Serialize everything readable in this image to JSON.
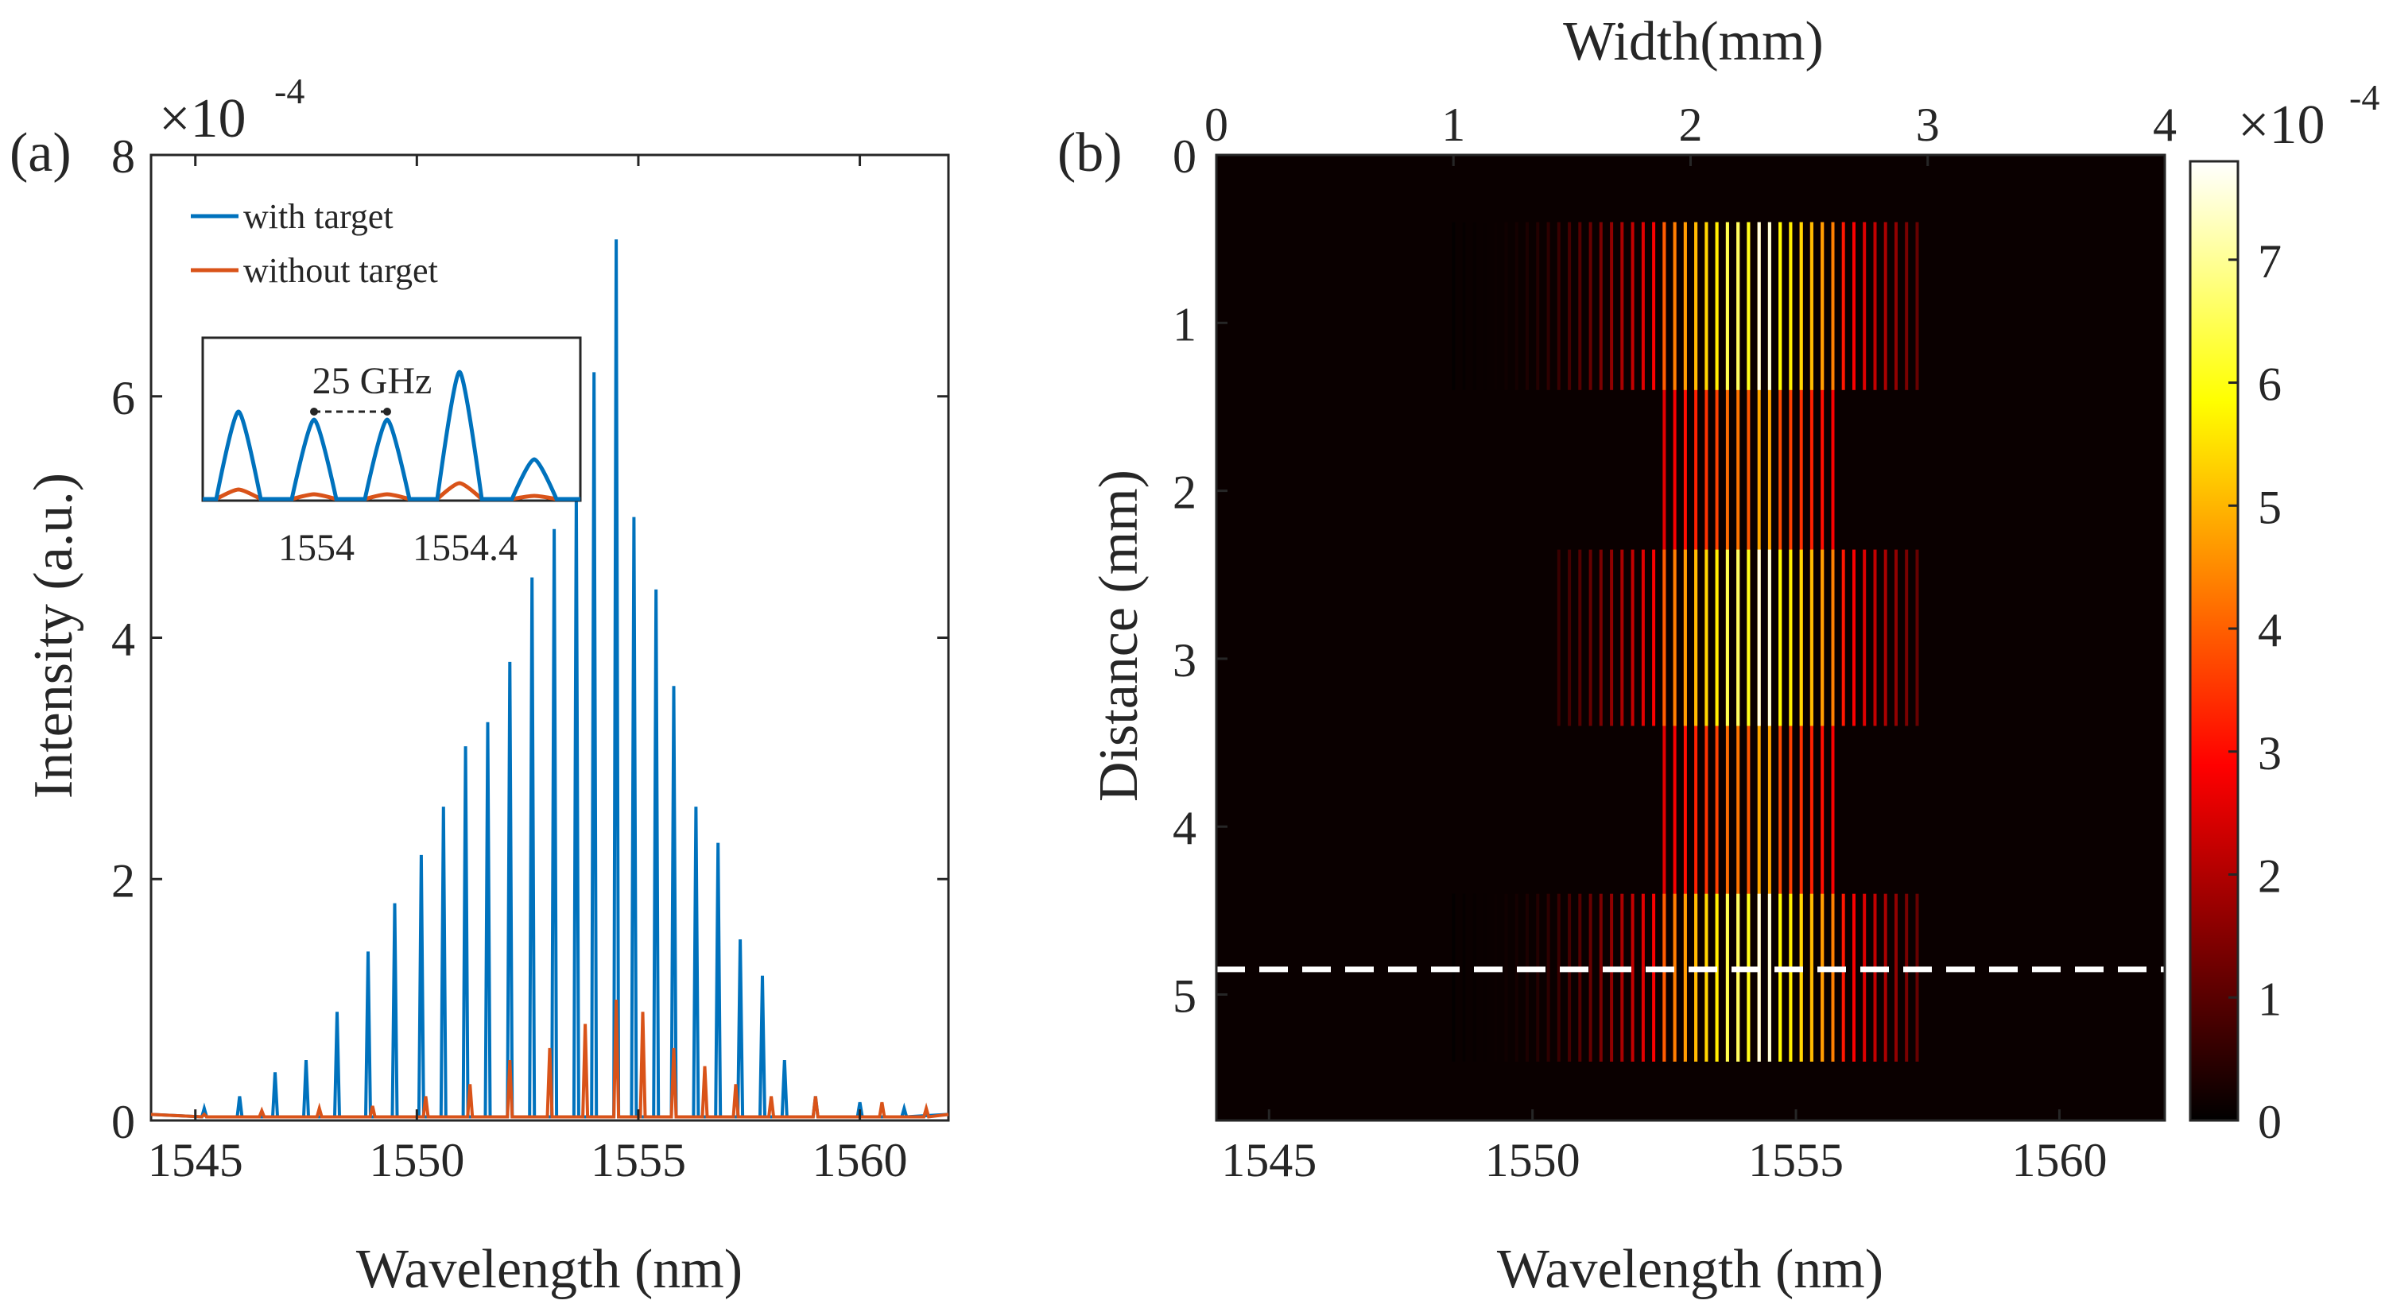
{
  "chart_data": [
    {
      "panel": "(a)",
      "type": "line",
      "xlabel": "Wavelength (nm)",
      "ylabel": "Intensity (a.u.)",
      "xlim": [
        1544,
        1562
      ],
      "ylim": [
        0,
        8
      ],
      "xticks": [
        "1545",
        "1550",
        "1555",
        "1560"
      ],
      "yticks": [
        "0",
        "2",
        "4",
        "6",
        "8"
      ],
      "y_multiplier": "×10",
      "y_exponent": "-4",
      "legend_loc": "top-left",
      "series": [
        {
          "name": "with target",
          "color": "#0072BD",
          "x": [
            1545.2,
            1546.0,
            1546.8,
            1547.5,
            1548.2,
            1548.9,
            1549.5,
            1550.1,
            1550.6,
            1551.1,
            1551.6,
            1552.1,
            1552.6,
            1553.1,
            1553.6,
            1554.0,
            1554.5,
            1554.9,
            1555.4,
            1555.8,
            1556.3,
            1556.8,
            1557.3,
            1557.8,
            1558.3,
            1559.0,
            1560.0,
            1561.0
          ],
          "values": [
            0.1,
            0.2,
            0.4,
            0.5,
            0.9,
            1.4,
            1.8,
            2.2,
            2.6,
            3.1,
            3.3,
            3.8,
            4.5,
            4.9,
            5.2,
            6.2,
            7.3,
            5.0,
            4.4,
            3.6,
            2.6,
            2.3,
            1.5,
            1.2,
            0.5,
            0.2,
            0.15,
            0.1
          ]
        },
        {
          "name": "without target",
          "color": "#D95319",
          "x": [
            1545.2,
            1546.5,
            1547.8,
            1549.0,
            1550.2,
            1551.2,
            1552.1,
            1553.0,
            1553.8,
            1554.5,
            1555.1,
            1555.8,
            1556.5,
            1557.2,
            1558.0,
            1559.0,
            1560.5,
            1561.5
          ],
          "values": [
            0.05,
            0.08,
            0.1,
            0.12,
            0.2,
            0.3,
            0.5,
            0.6,
            0.8,
            1.0,
            0.9,
            0.6,
            0.45,
            0.3,
            0.2,
            0.2,
            0.15,
            0.1
          ]
        }
      ],
      "inset": {
        "annotation": "25 GHz",
        "xticks": [
          "1554",
          "1554.4"
        ],
        "with_target_peaks": [
          0.55,
          0.5,
          0.5,
          0.8,
          0.25
        ],
        "without_target_peaks": [
          0.06,
          0.03,
          0.03,
          0.1,
          0.02
        ]
      }
    },
    {
      "panel": "(b)",
      "type": "heatmap",
      "xlabel": "Wavelength (nm)",
      "ylabel": "Distance (mm)",
      "top_xlabel": "Width(mm)",
      "xlim": [
        1544,
        1562
      ],
      "top_xlim": [
        0,
        4
      ],
      "ylim": [
        0,
        5.75
      ],
      "xticks": [
        "1545",
        "1550",
        "1555",
        "1560"
      ],
      "top_xticks": [
        "0",
        "1",
        "2",
        "3",
        "4"
      ],
      "yticks": [
        "0",
        "1",
        "2",
        "3",
        "4",
        "5"
      ],
      "colorbar": {
        "ticks": [
          "0",
          "1",
          "2",
          "3",
          "4",
          "5",
          "6",
          "7"
        ],
        "multiplier": "×10",
        "exponent": "-4",
        "max": 7.8
      },
      "bands_mm": [
        {
          "y0": 0.4,
          "y1": 1.4,
          "x0_nm": 1548.5
        },
        {
          "y0": 2.35,
          "y1": 3.4,
          "x0_nm": 1550.5
        },
        {
          "y0": 4.4,
          "y1": 5.4,
          "x0_nm": 1548.5
        }
      ],
      "center_band_mm": {
        "y0": 0.4,
        "y1": 5.4,
        "x0_nm": 1552.5,
        "x1_nm": 1555.8
      },
      "dashed_line_distance_mm": 4.85
    }
  ]
}
